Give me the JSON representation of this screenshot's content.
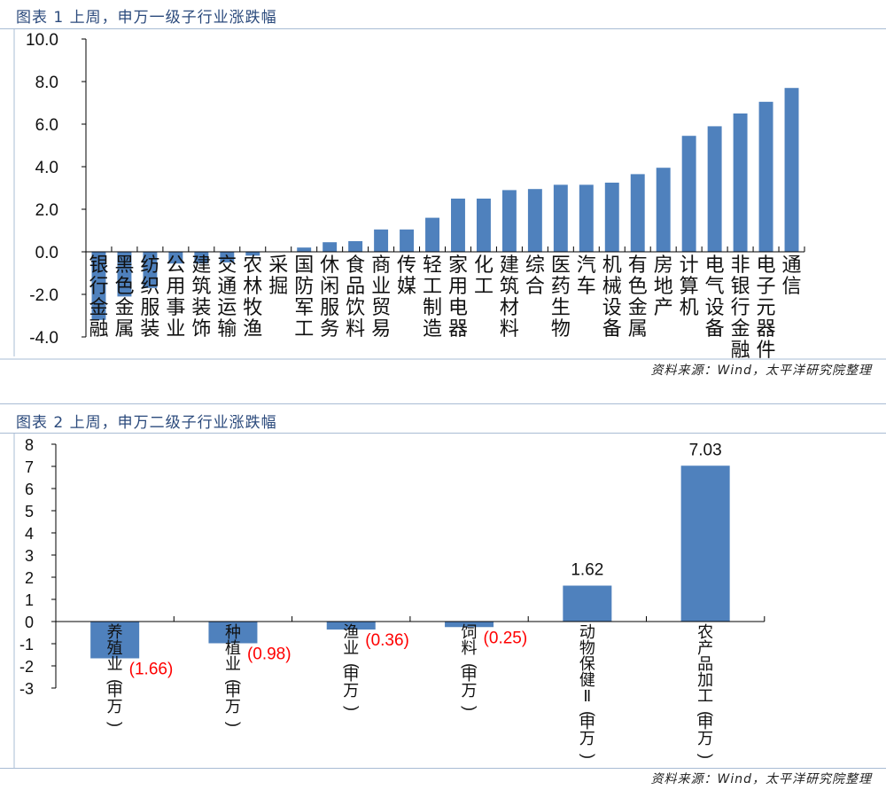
{
  "chart1": {
    "title": "图表 1 上周，申万一级子行业涨跌幅",
    "source": "资料来源：Wind，太平洋研究院整理"
  },
  "chart2": {
    "title": "图表 2 上周，申万二级子行业涨跌幅",
    "source": "资料来源：Wind，太平洋研究院整理"
  },
  "colors": {
    "bar": "#4f81bd",
    "title": "#2b4a7c",
    "negative_label": "#ff0000"
  },
  "chart_data": [
    {
      "type": "bar",
      "title": "图表 1 上周，申万一级子行业涨跌幅",
      "ylim": [
        -4,
        10
      ],
      "yticks": [
        "10.0",
        "8.0",
        "6.0",
        "4.0",
        "2.0",
        "0.0",
        "-2.0",
        "-4.0"
      ],
      "categories": [
        "银行金融",
        "黑色金属",
        "纺织服装",
        "公用事业",
        "建筑装饰",
        "交通运输",
        "农林牧渔",
        "采掘",
        "国防军工",
        "休闲服务",
        "食品饮料",
        "商业贸易",
        "传媒",
        "轻工制造",
        "家用电器",
        "化工",
        "建筑材料",
        "综合",
        "医药生物",
        "汽车",
        "机械设备",
        "有色金属",
        "房地产",
        "计算机",
        "电气设备",
        "非银行金融",
        "电子元器件",
        "通信"
      ],
      "values": [
        -3.2,
        -2.1,
        -1.7,
        -0.55,
        -0.55,
        -0.5,
        -0.18,
        0,
        0.2,
        0.45,
        0.5,
        1.05,
        1.05,
        1.6,
        2.5,
        2.5,
        2.9,
        2.95,
        3.15,
        3.15,
        3.25,
        3.65,
        3.95,
        5.45,
        5.9,
        6.5,
        7.05,
        7.7
      ]
    },
    {
      "type": "bar",
      "title": "图表 2 上周，申万二级子行业涨跌幅",
      "ylim": [
        -3,
        8
      ],
      "yticks": [
        "8",
        "7",
        "6",
        "5",
        "4",
        "3",
        "2",
        "1",
        "0",
        "-1",
        "-2",
        "-3"
      ],
      "categories": [
        "养殖业(申万)",
        "种植业(申万)",
        "渔业(申万)",
        "饲料(申万)",
        "动物保健Ⅱ(申万)",
        "农产品加工(申万)"
      ],
      "values": [
        -1.66,
        -0.98,
        -0.36,
        -0.25,
        1.62,
        7.03
      ],
      "data_labels": [
        "(1.66)",
        "(0.98)",
        "(0.36)",
        "(0.25)",
        "1.62",
        "7.03"
      ]
    }
  ]
}
